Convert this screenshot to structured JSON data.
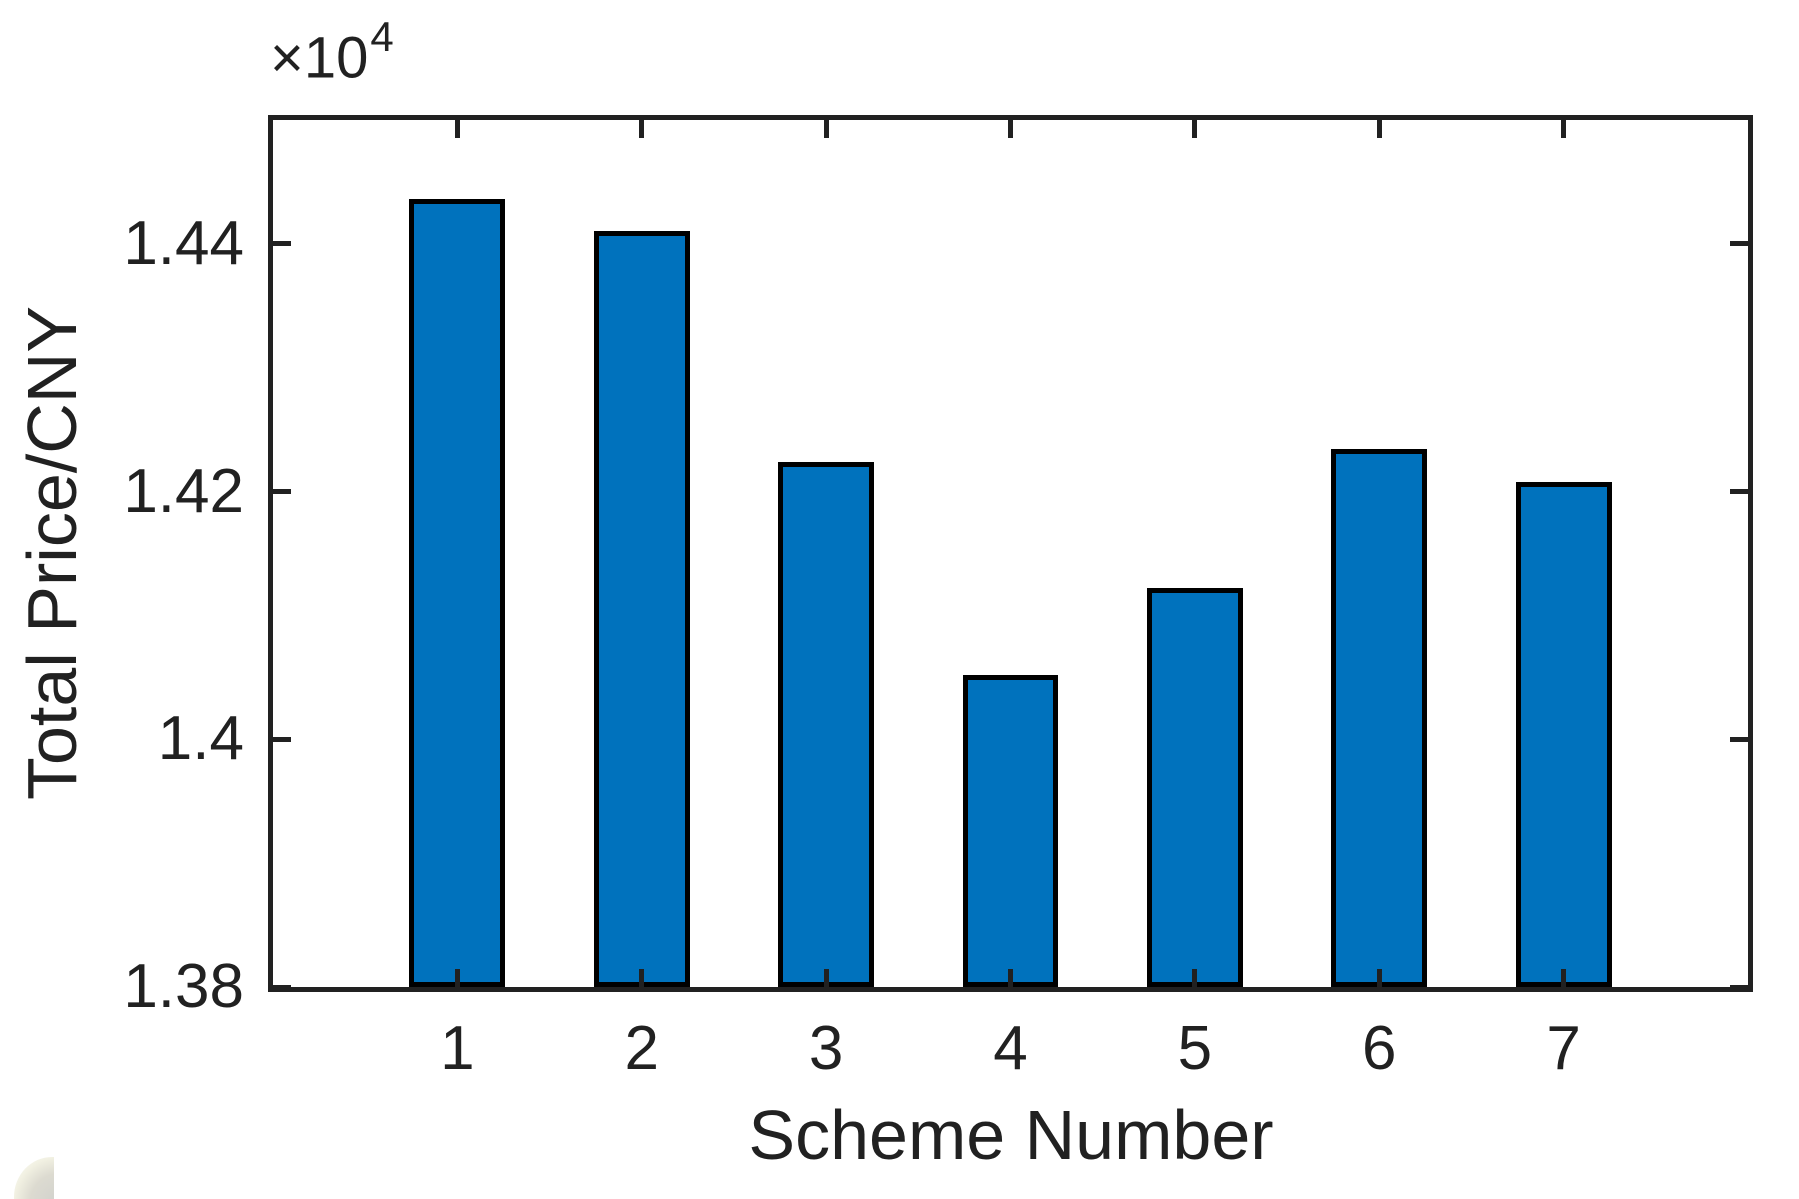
{
  "chart_data": {
    "type": "bar",
    "title": "",
    "xlabel": "Scheme Number",
    "ylabel": "Total Price/CNY",
    "exponent": {
      "prefix": "×10",
      "sup": "4"
    },
    "categories": [
      "1",
      "2",
      "3",
      "4",
      "5",
      "6",
      "7"
    ],
    "values": [
      14436,
      14410,
      14224,
      14052,
      14122,
      14234,
      14208
    ],
    "unit": "CNY",
    "xlim": [
      0,
      8
    ],
    "ylim": [
      13800,
      14500
    ],
    "y_ticks": [
      {
        "v": 13800,
        "label": "1.38"
      },
      {
        "v": 14000,
        "label": "1.4"
      },
      {
        "v": 14200,
        "label": "1.42"
      },
      {
        "v": 14400,
        "label": "1.44"
      }
    ],
    "x_tick_values": [
      1,
      2,
      3,
      4,
      5,
      6,
      7
    ],
    "bar_width_fraction": 0.52,
    "grid": false,
    "legend": null,
    "colors": {
      "bar_fill": "#0072BD",
      "bar_edge": "#000000",
      "axis": "#212121",
      "text": "#212121",
      "background": "#ffffff"
    }
  }
}
